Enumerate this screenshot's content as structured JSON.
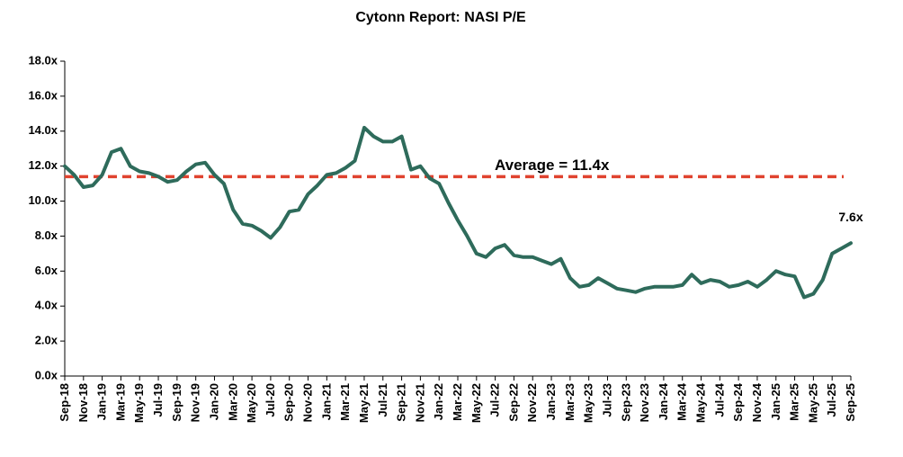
{
  "chart_data": {
    "type": "line",
    "title": "Cytonn Report: NASI P/E",
    "categories": [
      "Sep-18",
      null,
      "Nov-18",
      null,
      "Jan-19",
      null,
      "Mar-19",
      null,
      "May-19",
      null,
      "Jul-19",
      null,
      "Sep-19",
      null,
      "Nov-19",
      null,
      "Jan-20",
      null,
      "Mar-20",
      null,
      "May-20",
      null,
      "Jul-20",
      null,
      "Sep-20",
      null,
      "Nov-20",
      null,
      "Jan-21",
      null,
      "Mar-21",
      null,
      "May-21",
      null,
      "Jul-21",
      null,
      "Sep-21",
      null,
      "Nov-21",
      null,
      "Jan-22",
      null,
      "Mar-22",
      null,
      "May-22",
      null,
      "Jul-22",
      null,
      "Sep-22",
      null,
      "Nov-22",
      null,
      "Jan-23",
      null,
      "Mar-23",
      null,
      "May-23",
      null,
      "Jul-23",
      null,
      "Sep-23",
      null,
      "Nov-23",
      null,
      "Jan-24",
      null,
      "Mar-24",
      null,
      "May-24",
      null,
      "Jul-24",
      null,
      "Sep-24",
      null,
      "Nov-24",
      null,
      "Jan-25",
      null,
      "Mar-25",
      null,
      "May-25",
      null,
      "Jul-25",
      null,
      "Sep-25"
    ],
    "values": [
      12.0,
      11.5,
      10.8,
      10.9,
      11.5,
      12.8,
      13.0,
      12.0,
      11.7,
      11.6,
      11.4,
      11.1,
      11.2,
      11.7,
      12.1,
      12.2,
      11.5,
      11.0,
      9.5,
      8.7,
      8.6,
      8.3,
      7.9,
      8.5,
      9.4,
      9.5,
      10.4,
      10.9,
      11.5,
      11.6,
      11.9,
      12.3,
      14.2,
      13.7,
      13.4,
      13.4,
      13.7,
      11.8,
      12.0,
      11.3,
      11.0,
      9.9,
      8.9,
      8.0,
      7.0,
      6.8,
      7.3,
      7.5,
      6.9,
      6.8,
      6.8,
      6.6,
      6.4,
      6.7,
      5.6,
      5.1,
      5.2,
      5.6,
      5.3,
      5.0,
      4.9,
      4.8,
      5.0,
      5.1,
      5.1,
      5.1,
      5.2,
      5.8,
      5.3,
      5.5,
      5.4,
      5.1,
      5.2,
      5.4,
      5.1,
      5.5,
      6.0,
      5.8,
      5.7,
      4.5,
      4.7,
      5.5,
      7.0,
      7.3,
      7.6
    ],
    "value_labels": [
      null,
      null,
      null,
      null,
      null,
      null,
      null,
      null,
      null,
      null,
      null,
      null,
      null,
      null,
      null,
      null,
      null,
      null,
      null,
      null,
      null,
      null,
      null,
      null,
      null,
      null,
      null,
      null,
      null,
      null,
      null,
      null,
      null,
      null,
      null,
      null,
      null,
      null,
      null,
      null,
      null,
      null,
      null,
      null,
      null,
      null,
      null,
      null,
      null,
      null,
      null,
      null,
      null,
      null,
      null,
      null,
      null,
      null,
      null,
      null,
      null,
      null,
      null,
      null,
      null,
      null,
      null,
      null,
      null,
      null,
      null,
      null,
      null,
      null,
      null,
      null,
      null,
      null,
      null,
      null,
      null,
      null,
      null,
      null,
      "7.6x"
    ],
    "color": "#2e6b5b",
    "average": {
      "value": 11.4,
      "label": "Average = 11.4x",
      "color": "#e0432f"
    },
    "ylim": [
      0,
      18
    ],
    "yticks": [
      {
        "value": 0,
        "label": "0.0x"
      },
      {
        "value": 2,
        "label": "2.0x"
      },
      {
        "value": 4,
        "label": "4.0x"
      },
      {
        "value": 6,
        "label": "6.0x"
      },
      {
        "value": 8,
        "label": "8.0x"
      },
      {
        "value": 10,
        "label": "10.0x"
      },
      {
        "value": 12,
        "label": "12.0x"
      },
      {
        "value": 14,
        "label": "14.0x"
      },
      {
        "value": 16,
        "label": "16.0x"
      },
      {
        "value": 18,
        "label": "18.0x"
      }
    ],
    "grid": false
  }
}
